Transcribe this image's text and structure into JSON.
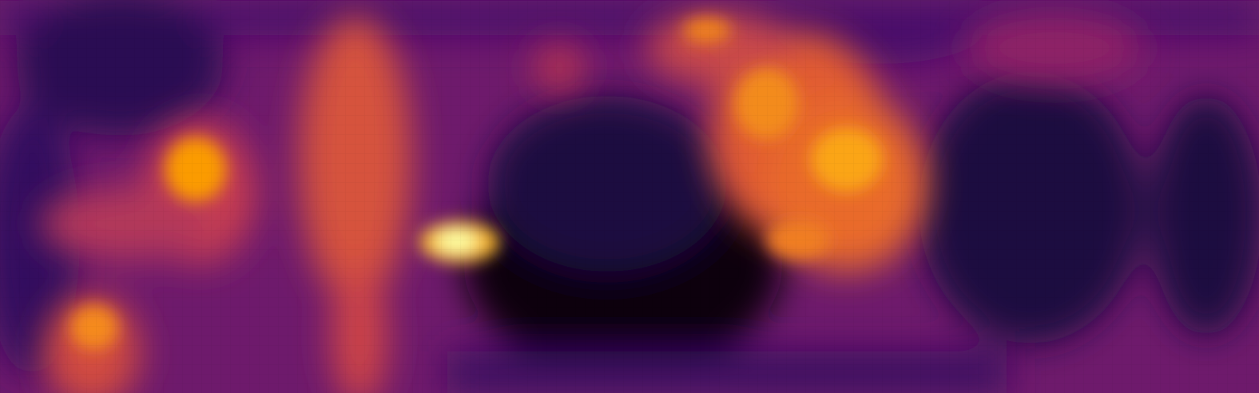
{
  "image": {
    "kind": "heatmap",
    "colormap": "inferno",
    "colormap_stops": [
      "#000004",
      "#1b0c41",
      "#4a0c6b",
      "#781c6d",
      "#a52c60",
      "#cf4446",
      "#ed6925",
      "#fb9b06",
      "#f7d13d",
      "#fcffa4"
    ],
    "base_level": 0.3
  }
}
